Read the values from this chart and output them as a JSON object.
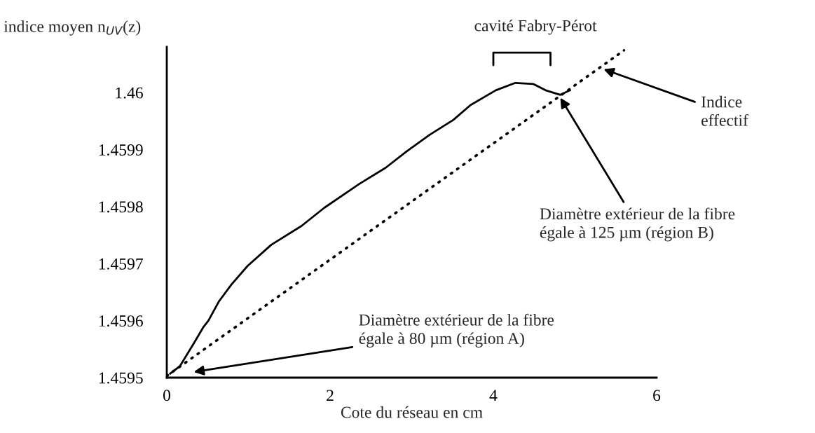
{
  "chart_data": {
    "type": "line",
    "xlabel": "Cote du réseau en cm",
    "ylabel": "indice moyen n$_{UV}$(z)",
    "xlim": [
      0,
      6
    ],
    "xticks": [
      0,
      2,
      4,
      6
    ],
    "ylim": [
      1.4595,
      1.46008
    ],
    "yticks": [
      1.4595,
      1.4596,
      1.4597,
      1.4598,
      1.4599,
      1.46
    ],
    "grid": false,
    "legend": false,
    "series": [
      {
        "color": "#000000",
        "line_style": "solid",
        "x": [
          0.04,
          0.16,
          0.33,
          0.45,
          0.51,
          0.64,
          0.79,
          0.99,
          1.28,
          1.65,
          1.93,
          2.36,
          2.68,
          2.94,
          3.22,
          3.51,
          3.72,
          4.03,
          4.27,
          4.49,
          4.64,
          4.82,
          4.94
        ],
        "values": [
          1.459507,
          1.45952,
          1.45956,
          1.459589,
          1.4596,
          1.459634,
          1.459663,
          1.459696,
          1.459733,
          1.459766,
          1.459798,
          1.45984,
          1.459868,
          1.459897,
          1.459926,
          1.459952,
          1.459978,
          1.460004,
          1.460017,
          1.460015,
          1.460004,
          1.459996,
          1.460004
        ]
      },
      {
        "color": "#000000",
        "line_style": "dotted",
        "x": [
          0.0,
          5.6
        ],
        "values": [
          1.459503,
          1.460074
        ]
      }
    ],
    "annotations": [
      "cavité Fabry-Pérot",
      {
        "text": "Indice\neffectif",
        "x": 5.35,
        "y": 1.460041
      },
      {
        "text": "Diamètre extérieur de la fibre\négale à 125 µm (région B)",
        "x": 4.82,
        "y": 1.459991
      },
      "Diamètre extérieur de la fibre\négale à 80 µm (région A)"
    ]
  }
}
